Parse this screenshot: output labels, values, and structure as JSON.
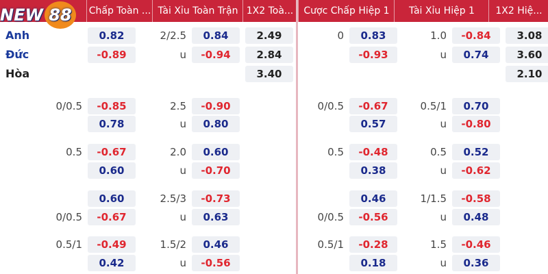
{
  "header": {
    "logo": {
      "prefix": "NEW",
      "number": "88"
    },
    "columns": [
      "Chấp Toàn ...",
      "Tài Xỉu Toàn Trận",
      "1X2 Toà...",
      "Cược Chấp Hiệp 1",
      "Tài Xỉu Hiệp 1",
      "1X2 Hiệ..."
    ]
  },
  "rows": [
    {
      "team": "Anh",
      "cells": [
        {
          "odds": "0.82"
        },
        {
          "line": "2/2.5",
          "odds": "0.84"
        },
        {
          "odds": "2.49"
        },
        {
          "line": "0",
          "odds": "0.83"
        },
        {
          "line": "1.0",
          "odds": "-0.84"
        },
        {
          "odds": "3.08"
        }
      ]
    },
    {
      "team": "Đức",
      "cells": [
        {
          "odds": "-0.89"
        },
        {
          "line": "u",
          "odds": "-0.94"
        },
        {
          "odds": "2.84"
        },
        {
          "odds": "-0.93"
        },
        {
          "line": "u",
          "odds": "0.74"
        },
        {
          "odds": "3.60"
        }
      ]
    },
    {
      "team": "Hòa",
      "cells": [
        null,
        null,
        {
          "odds": "3.40"
        },
        null,
        null,
        {
          "odds": "2.10"
        }
      ]
    },
    {
      "cells": [
        {
          "line": "0/0.5",
          "odds": "-0.85"
        },
        {
          "line": "2.5",
          "odds": "-0.90"
        },
        null,
        {
          "line": "0/0.5",
          "odds": "-0.67"
        },
        {
          "line": "0.5/1",
          "odds": "0.70"
        },
        null
      ]
    },
    {
      "cells": [
        {
          "odds": "0.78"
        },
        {
          "line": "u",
          "odds": "0.80"
        },
        null,
        {
          "odds": "0.57"
        },
        {
          "line": "u",
          "odds": "-0.80"
        },
        null
      ]
    },
    {
      "cells": [
        {
          "line": "0.5",
          "odds": "-0.67"
        },
        {
          "line": "2.0",
          "odds": "0.60"
        },
        null,
        {
          "line": "0.5",
          "odds": "-0.48"
        },
        {
          "line": "0.5",
          "odds": "0.52"
        },
        null
      ]
    },
    {
      "cells": [
        {
          "odds": "0.60"
        },
        {
          "line": "u",
          "odds": "-0.70"
        },
        null,
        {
          "odds": "0.38"
        },
        {
          "line": "u",
          "odds": "-0.62"
        },
        null
      ]
    },
    {
      "cells": [
        {
          "odds": "0.60"
        },
        {
          "line": "2.5/3",
          "odds": "-0.73"
        },
        null,
        {
          "odds": "0.46"
        },
        {
          "line": "1/1.5",
          "odds": "-0.58"
        },
        null
      ]
    },
    {
      "cells": [
        {
          "line": "0/0.5",
          "odds": "-0.67"
        },
        {
          "line": "u",
          "odds": "0.63"
        },
        null,
        {
          "line": "0/0.5",
          "odds": "-0.56"
        },
        {
          "line": "u",
          "odds": "0.48"
        },
        null
      ]
    },
    {
      "cells": [
        {
          "line": "0.5/1",
          "odds": "-0.49"
        },
        {
          "line": "1.5/2",
          "odds": "0.46"
        },
        null,
        {
          "line": "0.5/1",
          "odds": "-0.28"
        },
        {
          "line": "1.5",
          "odds": "-0.46"
        },
        null
      ]
    },
    {
      "cells": [
        {
          "odds": "0.42"
        },
        {
          "line": "u",
          "odds": "-0.56"
        },
        null,
        {
          "odds": "0.18"
        },
        {
          "line": "u",
          "odds": "0.36"
        },
        null
      ]
    }
  ]
}
